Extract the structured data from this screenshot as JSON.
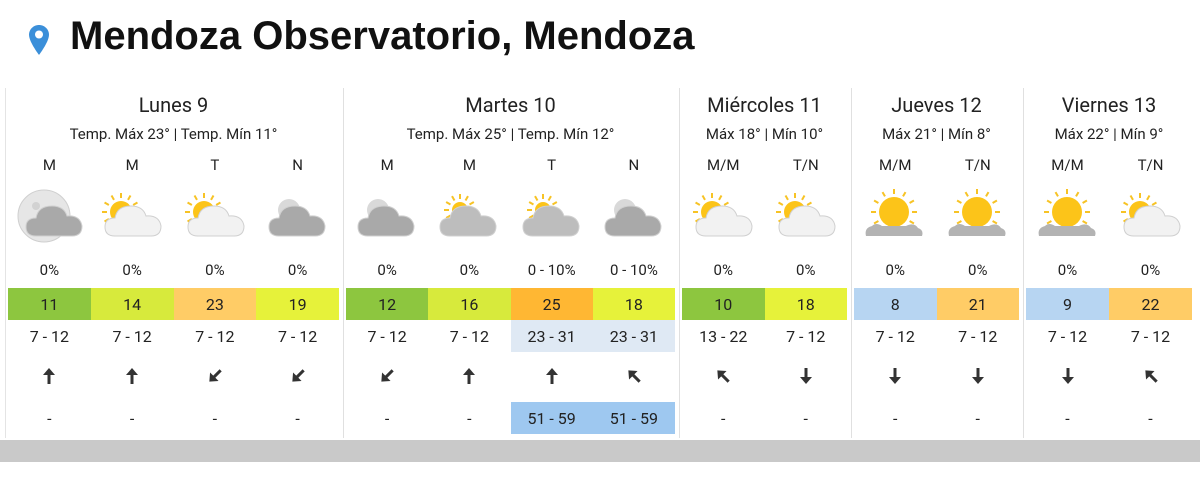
{
  "header": {
    "title": "Mendoza Observatorio, Mendoza"
  },
  "days": [
    {
      "name": "Lunes 9",
      "temps": "Temp. Máx 23° | Temp. Mín 11°",
      "periods": [
        {
          "label": "M",
          "precip": "0%",
          "temp": 11,
          "temp_color": "#8dc63f",
          "wind": "7 - 12",
          "gust": "-"
        },
        {
          "label": "M",
          "precip": "0%",
          "temp": 14,
          "temp_color": "#d7ea3c",
          "wind": "7 - 12",
          "gust": "-"
        },
        {
          "label": "T",
          "precip": "0%",
          "temp": 23,
          "temp_color": "#ffcc66",
          "wind": "7 - 12",
          "gust": "-"
        },
        {
          "label": "N",
          "precip": "0%",
          "temp": 19,
          "temp_color": "#e6f23a",
          "wind": "7 - 12",
          "gust": "-"
        }
      ]
    },
    {
      "name": "Martes 10",
      "temps": "Temp. Máx 25° | Temp. Mín 12°",
      "periods": [
        {
          "label": "M",
          "precip": "0%",
          "temp": 12,
          "temp_color": "#8dc63f",
          "wind": "7 - 12",
          "gust": "-"
        },
        {
          "label": "M",
          "precip": "0%",
          "temp": 16,
          "temp_color": "#d7ea3c",
          "wind": "7 - 12",
          "gust": "-"
        },
        {
          "label": "T",
          "precip": "0 - 10%",
          "temp": 25,
          "temp_color": "#ffb733",
          "wind": "23 - 31",
          "wind_color": "#dfe9f4",
          "gust": "51 - 59",
          "gust_color": "#9ec8f0"
        },
        {
          "label": "N",
          "precip": "0 - 10%",
          "temp": 18,
          "temp_color": "#e6f23a",
          "wind": "23 - 31",
          "wind_color": "#dfe9f4",
          "gust": "51 - 59",
          "gust_color": "#9ec8f0"
        }
      ]
    },
    {
      "name": "Miércoles 11",
      "temps": "Máx 18° | Mín 10°",
      "periods": [
        {
          "label": "M/M",
          "precip": "0%",
          "temp": 10,
          "temp_color": "#8dc63f",
          "wind": "13 - 22",
          "gust": "-"
        },
        {
          "label": "T/N",
          "precip": "0%",
          "temp": 18,
          "temp_color": "#e6f23a",
          "wind": "7 - 12",
          "gust": "-"
        }
      ]
    },
    {
      "name": "Jueves 12",
      "temps": "Máx 21° | Mín 8°",
      "periods": [
        {
          "label": "M/M",
          "precip": "0%",
          "temp": 8,
          "temp_color": "#b7d5f2",
          "wind": "7 - 12",
          "gust": "-"
        },
        {
          "label": "T/N",
          "precip": "0%",
          "temp": 21,
          "temp_color": "#ffcc66",
          "wind": "7 - 12",
          "gust": "-"
        }
      ]
    },
    {
      "name": "Viernes 13",
      "temps": "Máx 22° | Mín 9°",
      "periods": [
        {
          "label": "M/M",
          "precip": "0%",
          "temp": 9,
          "temp_color": "#b7d5f2",
          "wind": "7 - 12",
          "gust": "-"
        },
        {
          "label": "T/N",
          "precip": "0%",
          "temp": 22,
          "temp_color": "#ffcc66",
          "wind": "7 - 12",
          "gust": "-"
        }
      ]
    }
  ]
}
